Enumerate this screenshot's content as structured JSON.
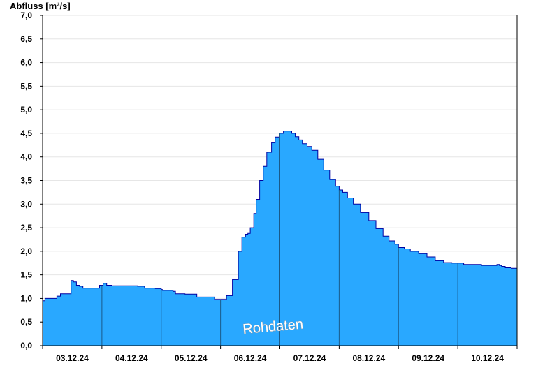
{
  "chart_data": {
    "type": "area",
    "ylabel": "Abfluss [m³/s]",
    "watermark": "Rohdaten",
    "ylim": [
      0,
      7
    ],
    "y_ticks": [
      "0,0",
      "0,5",
      "1,0",
      "1,5",
      "2,0",
      "2,5",
      "3,0",
      "3,5",
      "4,0",
      "4,5",
      "5,0",
      "5,5",
      "6,0",
      "6,5",
      "7,0"
    ],
    "x_ticks": [
      "03.12.24",
      "04.12.24",
      "05.12.24",
      "06.12.24",
      "07.12.24",
      "08.12.24",
      "09.12.24",
      "10.12.24"
    ],
    "x_range_days": [
      0,
      8
    ],
    "grid": true,
    "series": [
      {
        "color": "#29a8ff",
        "line_color": "#0000a0",
        "x_days": [
          0.0,
          0.04,
          0.1,
          0.24,
          0.3,
          0.4,
          0.48,
          0.52,
          0.57,
          0.62,
          0.68,
          0.8,
          0.96,
          1.02,
          1.08,
          1.16,
          1.24,
          1.4,
          1.6,
          1.72,
          1.9,
          2.0,
          2.02,
          2.2,
          2.24,
          2.4,
          2.6,
          2.74,
          2.9,
          3.0,
          3.1,
          3.2,
          3.3,
          3.36,
          3.42,
          3.46,
          3.5,
          3.56,
          3.6,
          3.66,
          3.72,
          3.78,
          3.86,
          3.92,
          4.0,
          4.06,
          4.14,
          4.2,
          4.26,
          4.32,
          4.38,
          4.46,
          4.54,
          4.64,
          4.74,
          4.84,
          4.94,
          5.0,
          5.06,
          5.14,
          5.24,
          5.36,
          5.5,
          5.62,
          5.74,
          5.84,
          5.94,
          6.0,
          6.1,
          6.2,
          6.34,
          6.48,
          6.62,
          6.76,
          6.9,
          7.0,
          7.1,
          7.2,
          7.3,
          7.4,
          7.5,
          7.6,
          7.66,
          7.7,
          7.74,
          7.8,
          7.9,
          8.0
        ],
        "y": [
          0.95,
          1.0,
          1.0,
          1.05,
          1.1,
          1.1,
          1.38,
          1.35,
          1.28,
          1.26,
          1.22,
          1.22,
          1.28,
          1.32,
          1.28,
          1.27,
          1.27,
          1.27,
          1.26,
          1.22,
          1.21,
          1.19,
          1.17,
          1.15,
          1.1,
          1.09,
          1.03,
          1.03,
          0.98,
          0.98,
          1.06,
          1.4,
          2.0,
          2.3,
          2.36,
          2.38,
          2.5,
          2.8,
          3.1,
          3.5,
          3.8,
          4.1,
          4.3,
          4.42,
          4.5,
          4.55,
          4.55,
          4.5,
          4.43,
          4.36,
          4.28,
          4.22,
          4.14,
          3.95,
          3.72,
          3.52,
          3.38,
          3.3,
          3.25,
          3.13,
          3.0,
          2.82,
          2.65,
          2.48,
          2.32,
          2.22,
          2.15,
          2.08,
          2.05,
          2.0,
          1.95,
          1.88,
          1.8,
          1.76,
          1.75,
          1.75,
          1.72,
          1.72,
          1.72,
          1.7,
          1.7,
          1.7,
          1.72,
          1.7,
          1.68,
          1.65,
          1.64,
          1.64
        ]
      }
    ]
  }
}
